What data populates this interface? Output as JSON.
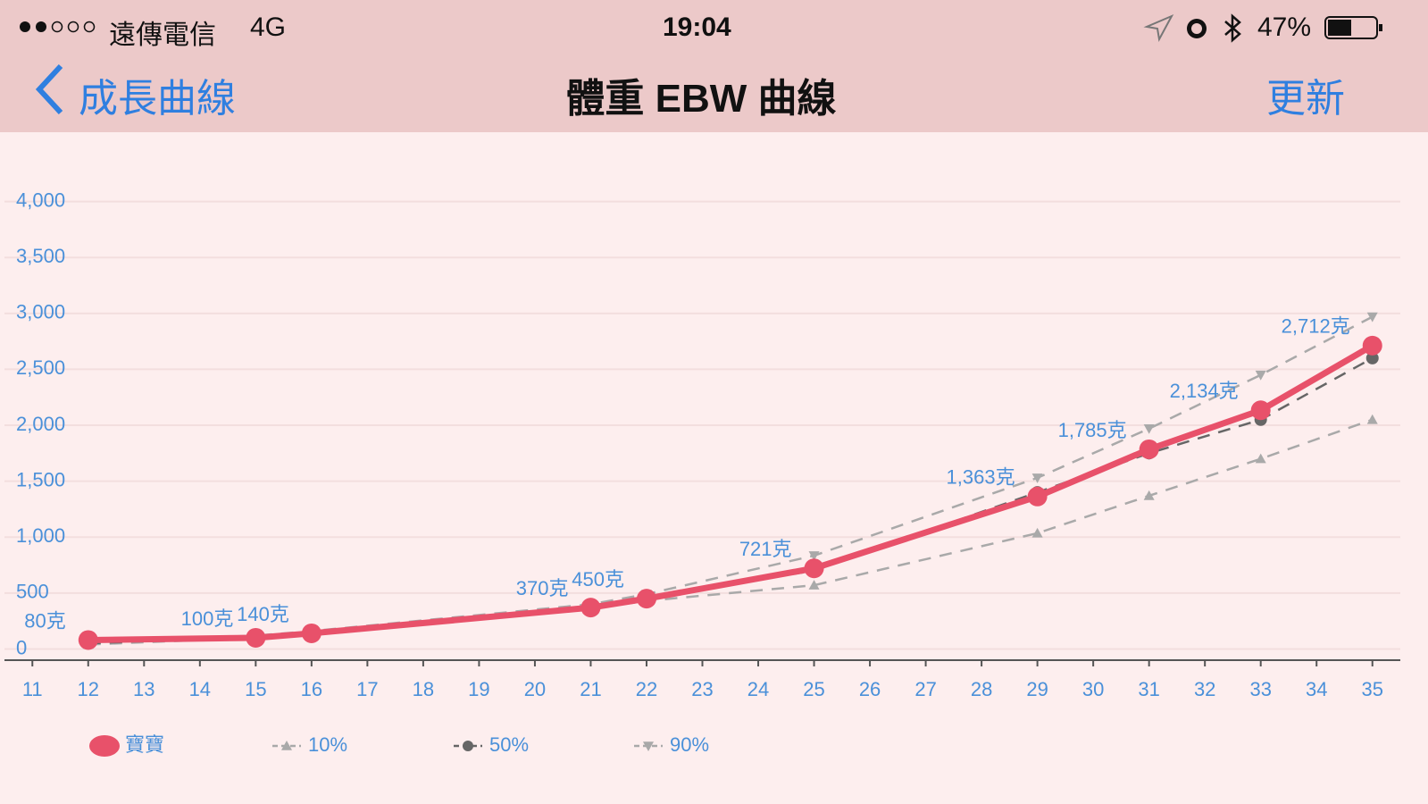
{
  "status_bar": {
    "carrier": "遠傳電信",
    "network": "4G",
    "time": "19:04",
    "battery": "47%"
  },
  "nav": {
    "back": "成長曲線",
    "title": "體重 EBW 曲線",
    "action": "更新"
  },
  "chart_data": {
    "type": "line",
    "x": [
      12,
      15,
      16,
      21,
      22,
      25,
      29,
      31,
      33,
      35
    ],
    "xlim": [
      10.5,
      35.5
    ],
    "xticks": [
      11,
      12,
      13,
      14,
      15,
      16,
      17,
      18,
      19,
      20,
      21,
      22,
      23,
      24,
      25,
      26,
      27,
      28,
      29,
      30,
      31,
      32,
      33,
      34,
      35
    ],
    "ylim": [
      -100,
      4500
    ],
    "yticks": [
      0,
      500,
      {
        "value": 1000,
        "label": "1,000"
      },
      {
        "value": 1500,
        "label": "1,500"
      },
      {
        "value": 2000,
        "label": "2,000"
      },
      {
        "value": 2500,
        "label": "2,500"
      },
      {
        "value": 3000,
        "label": "3,000"
      },
      {
        "value": 3500,
        "label": "3,500"
      },
      {
        "value": 4000,
        "label": "4,000"
      }
    ],
    "grid": true,
    "legend": "bottom-left",
    "series": [
      {
        "name": "寶寶",
        "color": "#e8516a",
        "marker": "circle",
        "dashed": false,
        "values": [
          80,
          100,
          140,
          370,
          450,
          721,
          1363,
          1785,
          2134,
          2712
        ],
        "value_labels": [
          "80克",
          "100克",
          "140克",
          "370克",
          "450克",
          "721克",
          "1,363克",
          "1,785克",
          "2,134克",
          "2,712克"
        ]
      },
      {
        "name": "10%",
        "color": "#a9a9a9",
        "marker": "triangle-up",
        "dashed": true,
        "values": [
          40,
          100,
          140,
          360,
          430,
          570,
          1035,
          1370,
          1700,
          2050
        ]
      },
      {
        "name": "50%",
        "color": "#666666",
        "marker": "circle",
        "dashed": true,
        "values": [
          50,
          110,
          150,
          380,
          470,
          700,
          1400,
          1750,
          2050,
          2600
        ]
      },
      {
        "name": "90%",
        "color": "#a9a9a9",
        "marker": "triangle-down",
        "dashed": true,
        "values": [
          60,
          120,
          160,
          400,
          490,
          835,
          1530,
          1970,
          2450,
          2970
        ]
      }
    ]
  }
}
